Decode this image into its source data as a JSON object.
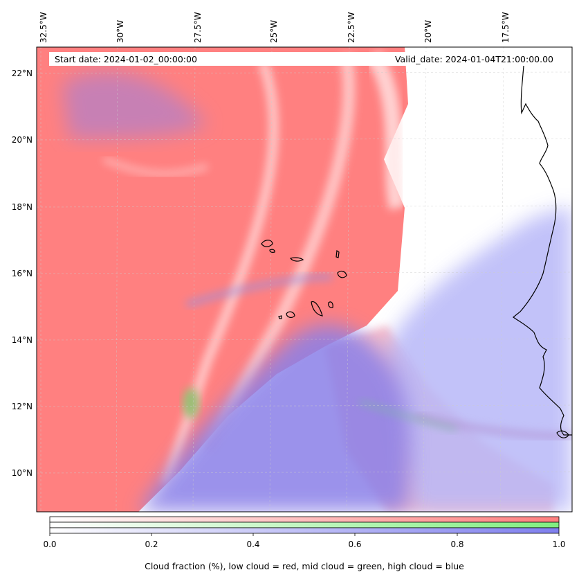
{
  "map": {
    "lon_ticks": [
      "32.5°W",
      "30°W",
      "27.5°W",
      "25°W",
      "22.5°W",
      "20°W",
      "17.5°W"
    ],
    "lat_ticks": [
      "22°N",
      "20°N",
      "18°N",
      "16°N",
      "14°N",
      "12°N",
      "10°N"
    ],
    "start_date": "Start date: 2024-01-02_00:00:00",
    "valid_date": "Valid_date: 2024-01-04T21:00:00.00"
  },
  "colorbar": {
    "ticks": [
      "0.0",
      "0.2",
      "0.4",
      "0.6",
      "0.8",
      "1.0"
    ],
    "label": "Cloud fraction (%), low cloud = red, mid cloud = green, high cloud = blue",
    "colors": {
      "low": "#ff7f7f",
      "mid": "#80ee80",
      "high": "#7f7fee"
    }
  }
}
